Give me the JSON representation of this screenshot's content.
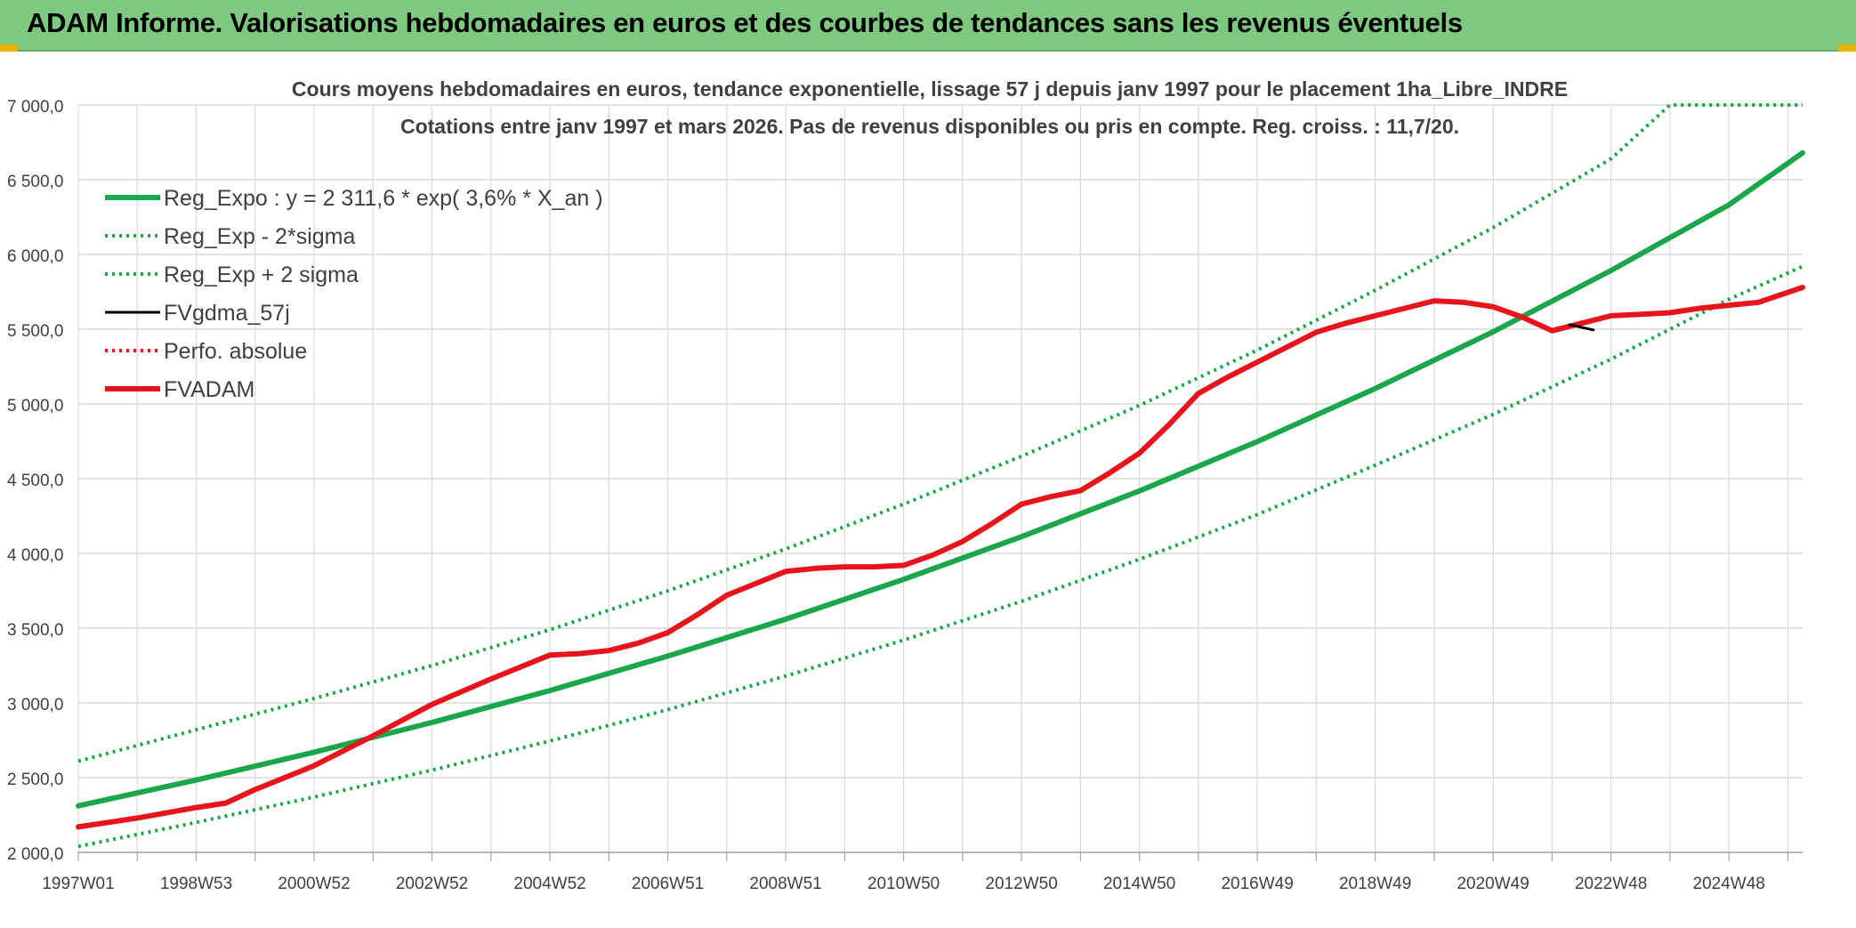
{
  "banner": {
    "title": "ADAM Informe. Valorisations hebdomadaires en euros et des courbes de tendances sans les revenus éventuels"
  },
  "colors": {
    "banner_bg": "#7dc97f",
    "trend_green": "#1aa64a",
    "adam_red": "#e8141b",
    "gdma_black": "#000000",
    "grid": "#d9d9d9"
  },
  "chart_data": {
    "type": "line",
    "title": "Cours moyens hebdomadaires en euros, tendance exponentielle, lissage 57 j depuis janv 1997 pour le placement 1ha_Libre_INDRE",
    "subtitle": "Cotations entre janv 1997 et mars 2026. Pas de revenus disponibles ou pris en compte. Reg. croiss. : 11,7/20.",
    "xlabel": "",
    "ylabel": "",
    "ylim": [
      2000,
      7000
    ],
    "xlim": [
      1997.0,
      2026.25
    ],
    "grid": true,
    "legend_position": "top-left",
    "y_ticks": [
      "2 000,0",
      "2 500,0",
      "3 000,0",
      "3 500,0",
      "4 000,0",
      "4 500,0",
      "5 000,0",
      "5 500,0",
      "6 000,0",
      "6 500,0",
      "7 000,0"
    ],
    "x_ticks": [
      {
        "label": "1997W01",
        "x": 1997.0
      },
      {
        "label": "1998W53",
        "x": 1999.0
      },
      {
        "label": "2000W52",
        "x": 2001.0
      },
      {
        "label": "2002W52",
        "x": 2003.0
      },
      {
        "label": "2004W52",
        "x": 2005.0
      },
      {
        "label": "2006W51",
        "x": 2007.0
      },
      {
        "label": "2008W51",
        "x": 2009.0
      },
      {
        "label": "2010W50",
        "x": 2011.0
      },
      {
        "label": "2012W50",
        "x": 2013.0
      },
      {
        "label": "2014W50",
        "x": 2015.0
      },
      {
        "label": "2016W49",
        "x": 2017.0
      },
      {
        "label": "2018W49",
        "x": 2019.0
      },
      {
        "label": "2020W49",
        "x": 2021.0
      },
      {
        "label": "2022W48",
        "x": 2023.0
      },
      {
        "label": "2024W48",
        "x": 2025.0
      }
    ],
    "series": [
      {
        "name": "Reg_Expo : y = 2 311,6 * exp( 3,6% *  X_an )",
        "style": "solid-thick",
        "color": "#1aa64a",
        "x": [
          1997.0,
          1999.0,
          2001.0,
          2003.0,
          2005.0,
          2007.0,
          2009.0,
          2011.0,
          2013.0,
          2015.0,
          2017.0,
          2019.0,
          2021.0,
          2023.0,
          2025.0,
          2026.25
        ],
        "y": [
          2311.6,
          2484,
          2670,
          2869,
          3083,
          3313,
          3560,
          3826,
          4112,
          4418,
          4748,
          5103,
          5483,
          5893,
          6332,
          6680
        ]
      },
      {
        "name": "Reg_Exp - 2*sigma",
        "style": "dotted",
        "color": "#1aa64a",
        "x": [
          1997.0,
          1999.0,
          2001.0,
          2003.0,
          2005.0,
          2007.0,
          2009.0,
          2011.0,
          2013.0,
          2015.0,
          2017.0,
          2019.0,
          2021.0,
          2023.0,
          2025.0,
          2026.25
        ],
        "y": [
          2040,
          2200,
          2370,
          2550,
          2745,
          2955,
          3180,
          3420,
          3680,
          3960,
          4260,
          4590,
          4930,
          5300,
          5700,
          5920
        ]
      },
      {
        "name": "Reg_Exp + 2 sigma",
        "style": "dotted",
        "color": "#1aa64a",
        "x": [
          1997.0,
          1999.0,
          2001.0,
          2003.0,
          2005.0,
          2007.0,
          2009.0,
          2011.0,
          2013.0,
          2015.0,
          2017.0,
          2019.0,
          2021.0,
          2023.0,
          2024.0,
          2025.0,
          2026.25
        ],
        "y": [
          2610,
          2820,
          3030,
          3250,
          3490,
          3750,
          4030,
          4330,
          4650,
          4990,
          5360,
          5760,
          6180,
          6640,
          7000,
          7000,
          7000
        ]
      },
      {
        "name": "FVgdma_57j",
        "style": "solid",
        "color": "#000000",
        "x": [
          2022.3,
          2022.7
        ],
        "y": [
          5530,
          5495
        ]
      },
      {
        "name": "Perfo. absolue",
        "style": "dotted",
        "color": "#e8141b",
        "x": [],
        "y": []
      },
      {
        "name": "FVADAM",
        "style": "solid-thick",
        "color": "#e8141b",
        "x": [
          1997.0,
          1998.0,
          1999.0,
          1999.5,
          2000.0,
          2001.0,
          2002.0,
          2003.0,
          2004.0,
          2005.0,
          2005.5,
          2006.0,
          2006.5,
          2007.0,
          2007.5,
          2008.0,
          2008.5,
          2009.0,
          2009.5,
          2010.0,
          2010.5,
          2011.0,
          2011.5,
          2012.0,
          2012.5,
          2013.0,
          2013.5,
          2014.0,
          2014.5,
          2015.0,
          2015.5,
          2016.0,
          2016.5,
          2017.0,
          2017.5,
          2018.0,
          2018.5,
          2019.0,
          2019.5,
          2020.0,
          2020.5,
          2021.0,
          2021.5,
          2022.0,
          2022.5,
          2023.0,
          2023.5,
          2024.0,
          2024.5,
          2025.0,
          2025.5,
          2026.25
        ],
        "y": [
          2170,
          2230,
          2300,
          2330,
          2420,
          2580,
          2780,
          2990,
          3160,
          3320,
          3330,
          3350,
          3400,
          3470,
          3590,
          3720,
          3800,
          3880,
          3900,
          3910,
          3910,
          3920,
          3990,
          4080,
          4200,
          4330,
          4380,
          4420,
          4540,
          4670,
          4860,
          5070,
          5180,
          5280,
          5380,
          5480,
          5540,
          5590,
          5640,
          5690,
          5680,
          5650,
          5580,
          5490,
          5540,
          5590,
          5600,
          5610,
          5640,
          5660,
          5680,
          5780
        ]
      }
    ]
  }
}
